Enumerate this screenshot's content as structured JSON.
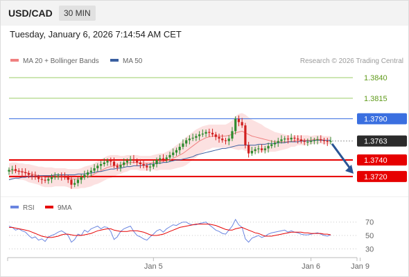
{
  "header": {
    "symbol": "USD/CAD",
    "interval": "30 MIN"
  },
  "timestamp": "Tuesday, January 6, 2026 7:14:54 AM CET",
  "colors": {
    "up": "#2e8b2e",
    "down": "#d11f1f",
    "ma20": "#f08080",
    "band": "#fbd9d9",
    "ma50": "#3a5fa0",
    "resistance_green": "#9acd66",
    "level_blue": "#3a6fe0",
    "support_red": "#e60000",
    "current": "#2b2b2b",
    "arrow": "#2a5595",
    "rsi": "#6a85e0",
    "rsi_ma": "#e60000"
  },
  "chart_data": {
    "type": "candlestick",
    "legend": [
      {
        "label": "MA 20 + Bollinger Bands",
        "color": "#f08080"
      },
      {
        "label": "MA 50",
        "color": "#3a5fa0"
      }
    ],
    "copyright": "Research © 2026 Trading Central",
    "ylim": [
      1.3698,
      1.3851
    ],
    "levels": [
      {
        "label": "1.3840",
        "value": 1.384,
        "kind": "resistance"
      },
      {
        "label": "1.3815",
        "value": 1.3815,
        "kind": "resistance"
      },
      {
        "label": "1.3790",
        "value": 1.379,
        "kind": "pivot"
      },
      {
        "label": "1.3763",
        "value": 1.3763,
        "kind": "current"
      },
      {
        "label": "1.3740",
        "value": 1.374,
        "kind": "support"
      },
      {
        "label": "1.3720",
        "value": 1.372,
        "kind": "support"
      }
    ],
    "x_ticks": [
      {
        "label": "Jan 5",
        "index": 44
      },
      {
        "label": "Jan 6",
        "index": 92
      },
      {
        "label": "Jan 9",
        "index": 107
      }
    ],
    "close": [
      1.3728,
      1.3729,
      1.3727,
      1.3726,
      1.3725,
      1.3724,
      1.3722,
      1.3721,
      1.3719,
      1.3717,
      1.3716,
      1.3715,
      1.3717,
      1.3719,
      1.372,
      1.3721,
      1.372,
      1.3719,
      1.3716,
      1.371,
      1.3712,
      1.3716,
      1.3719,
      1.3722,
      1.3725,
      1.3727,
      1.373,
      1.3733,
      1.3735,
      1.3737,
      1.3739,
      1.3738,
      1.3733,
      1.3731,
      1.3734,
      1.3737,
      1.3739,
      1.3741,
      1.3739,
      1.3737,
      1.3735,
      1.3733,
      1.3731,
      1.3732,
      1.3735,
      1.374,
      1.3742,
      1.3741,
      1.3743,
      1.3746,
      1.3749,
      1.3752,
      1.3756,
      1.376,
      1.3764,
      1.3766,
      1.3767,
      1.3769,
      1.3771,
      1.3772,
      1.3774,
      1.3773,
      1.3771,
      1.3768,
      1.3766,
      1.3764,
      1.3763,
      1.3766,
      1.3775,
      1.379,
      1.3786,
      1.3782,
      1.3758,
      1.3748,
      1.3751,
      1.3753,
      1.3754,
      1.3752,
      1.3754,
      1.3757,
      1.3759,
      1.3761,
      1.3763,
      1.3765,
      1.3766,
      1.3765,
      1.3767,
      1.3766,
      1.3765,
      1.3763,
      1.3762,
      1.3762,
      1.3763,
      1.3764,
      1.3765,
      1.3764,
      1.3763,
      1.3762,
      1.3763
    ],
    "ma20": [
      1.3726,
      1.3727,
      1.3727,
      1.3726,
      1.3726,
      1.3725,
      1.3724,
      1.3723,
      1.3722,
      1.3721,
      1.372,
      1.3719,
      1.3719,
      1.3719,
      1.3719,
      1.3719,
      1.3719,
      1.3719,
      1.3718,
      1.3717,
      1.3717,
      1.3717,
      1.3718,
      1.3719,
      1.372,
      1.3721,
      1.3723,
      1.3725,
      1.3727,
      1.3729,
      1.3731,
      1.3732,
      1.3733,
      1.3734,
      1.3734,
      1.3735,
      1.3736,
      1.3737,
      1.3737,
      1.3737,
      1.3736,
      1.3736,
      1.3736,
      1.3736,
      1.3737,
      1.3737,
      1.3738,
      1.3738,
      1.3739,
      1.374,
      1.3742,
      1.3744,
      1.3746,
      1.3748,
      1.3751,
      1.3754,
      1.3757,
      1.376,
      1.3763,
      1.3765,
      1.3767,
      1.3768,
      1.3769,
      1.3769,
      1.3769,
      1.3769,
      1.3769,
      1.377,
      1.3771,
      1.3773,
      1.3774,
      1.3775,
      1.3773,
      1.3771,
      1.3769,
      1.3768,
      1.3767,
      1.3766,
      1.3765,
      1.3764,
      1.3763,
      1.3762,
      1.3762,
      1.3762,
      1.3762,
      1.3762,
      1.3763,
      1.3763,
      1.3764,
      1.3764,
      1.3764,
      1.3764,
      1.3764,
      1.3765,
      1.3765,
      1.3765,
      1.3764,
      1.3764,
      1.3764
    ],
    "ma50": [
      1.3716,
      1.3717,
      1.3718,
      1.3718,
      1.3719,
      1.3719,
      1.372,
      1.372,
      1.372,
      1.3721,
      1.3721,
      1.3721,
      1.3721,
      1.3721,
      1.3722,
      1.3722,
      1.3722,
      1.3722,
      1.3722,
      1.3722,
      1.3722,
      1.3723,
      1.3723,
      1.3723,
      1.3724,
      1.3724,
      1.3725,
      1.3726,
      1.3726,
      1.3727,
      1.3728,
      1.3729,
      1.3729,
      1.373,
      1.373,
      1.3731,
      1.3732,
      1.3732,
      1.3733,
      1.3733,
      1.3733,
      1.3734,
      1.3734,
      1.3735,
      1.3735,
      1.3736,
      1.3736,
      1.3737,
      1.3737,
      1.3738,
      1.3739,
      1.374,
      1.374,
      1.3741,
      1.3742,
      1.3743,
      1.3744,
      1.3746,
      1.3747,
      1.3748,
      1.3749,
      1.375,
      1.3751,
      1.3752,
      1.3753,
      1.3754,
      1.3754,
      1.3755,
      1.3756,
      1.3757,
      1.3758,
      1.3758,
      1.3758,
      1.3758,
      1.3758,
      1.3758,
      1.3759,
      1.3759,
      1.3759,
      1.376,
      1.376,
      1.376,
      1.3761,
      1.3761,
      1.3761,
      1.3762,
      1.3762,
      1.3762,
      1.3762,
      1.3763,
      1.3763,
      1.3763,
      1.3763,
      1.3764,
      1.3764,
      1.3764,
      1.3764,
      1.3764,
      1.3764
    ],
    "band_width": [
      0.001,
      0.001,
      0.001,
      0.001,
      0.001,
      0.001,
      0.0011,
      0.0011,
      0.0011,
      0.0011,
      0.0012,
      0.0012,
      0.0012,
      0.0012,
      0.0011,
      0.0011,
      0.0011,
      0.0011,
      0.0011,
      0.0012,
      0.0012,
      0.0012,
      0.0012,
      0.0013,
      0.0013,
      0.0013,
      0.0013,
      0.0014,
      0.0014,
      0.0014,
      0.0014,
      0.0014,
      0.0013,
      0.0012,
      0.0011,
      0.001,
      0.001,
      0.0009,
      0.0009,
      0.0009,
      0.0009,
      0.0009,
      0.0009,
      0.0009,
      0.0009,
      0.001,
      0.001,
      0.001,
      0.0011,
      0.0012,
      0.0013,
      0.0014,
      0.0015,
      0.0016,
      0.0017,
      0.0017,
      0.0017,
      0.0017,
      0.0016,
      0.0016,
      0.0015,
      0.0015,
      0.0014,
      0.0014,
      0.0014,
      0.0014,
      0.0014,
      0.0015,
      0.0017,
      0.002,
      0.0022,
      0.0022,
      0.0022,
      0.0021,
      0.002,
      0.0019,
      0.0018,
      0.0017,
      0.0015,
      0.0014,
      0.0013,
      0.0012,
      0.0011,
      0.001,
      0.0009,
      0.0008,
      0.0007,
      0.0007,
      0.0006,
      0.0006,
      0.0006,
      0.0006,
      0.0005,
      0.0005,
      0.0005,
      0.0005,
      0.0005,
      0.0005,
      0.0005
    ],
    "forecast": {
      "from": 1.3763,
      "to": 1.372
    }
  },
  "rsi_panel": {
    "legend": [
      {
        "label": "RSI",
        "color": "#6a85e0"
      },
      {
        "label": "9MA",
        "color": "#e60000"
      }
    ],
    "ticks": [
      {
        "label": "70",
        "value": 70
      },
      {
        "label": "50",
        "value": 50
      },
      {
        "label": "30",
        "value": 30
      }
    ],
    "ylim": [
      20,
      78
    ],
    "rsi": [
      64,
      62,
      58,
      60,
      57,
      55,
      50,
      46,
      48,
      43,
      45,
      41,
      48,
      50,
      52,
      55,
      57,
      54,
      50,
      40,
      44,
      52,
      50,
      58,
      55,
      60,
      62,
      64,
      60,
      63,
      62,
      56,
      44,
      48,
      56,
      60,
      62,
      64,
      56,
      50,
      48,
      45,
      43,
      48,
      52,
      57,
      59,
      55,
      60,
      63,
      66,
      65,
      68,
      70,
      70,
      67,
      66,
      66,
      68,
      69,
      70,
      66,
      62,
      58,
      56,
      53,
      52,
      58,
      64,
      74,
      66,
      62,
      45,
      40,
      46,
      48,
      50,
      47,
      49,
      52,
      54,
      55,
      56,
      57,
      58,
      55,
      57,
      55,
      54,
      52,
      51,
      51,
      52,
      53,
      54,
      52,
      50,
      49,
      51
    ],
    "rsi_ma": [
      62,
      62,
      61,
      60,
      59,
      58,
      57,
      55,
      53,
      51,
      49,
      48,
      47,
      47,
      48,
      49,
      51,
      52,
      52,
      51,
      50,
      50,
      50,
      51,
      52,
      53,
      55,
      57,
      58,
      59,
      60,
      60,
      58,
      57,
      56,
      56,
      56,
      57,
      57,
      57,
      56,
      55,
      53,
      51,
      50,
      50,
      51,
      52,
      54,
      56,
      58,
      60,
      62,
      63,
      64,
      65,
      66,
      67,
      67,
      67,
      67,
      67,
      66,
      65,
      63,
      61,
      59,
      58,
      58,
      60,
      61,
      62,
      60,
      58,
      56,
      54,
      53,
      51,
      49,
      49,
      49,
      50,
      51,
      52,
      53,
      54,
      55,
      55,
      55,
      55,
      54,
      54,
      53,
      53,
      53,
      53,
      52,
      52,
      51
    ]
  }
}
